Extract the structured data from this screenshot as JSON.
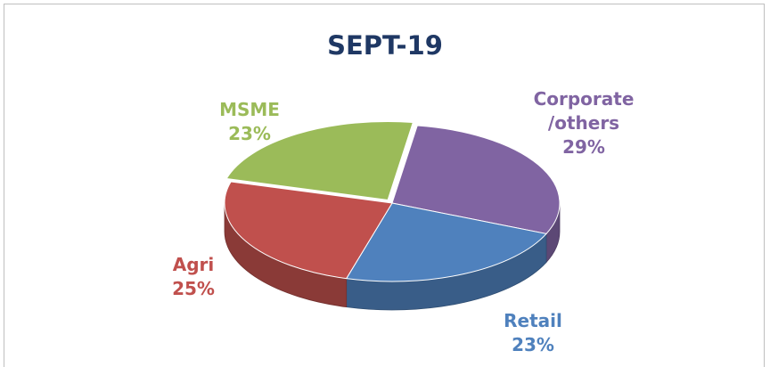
{
  "chart_data": {
    "type": "pie",
    "title": "SEPT-19",
    "categories": [
      "Corporate\n/others",
      "Retail",
      "Agri",
      "MSME"
    ],
    "values": [
      29,
      23,
      25,
      23
    ],
    "value_labels": [
      "29%",
      "23%",
      "25%",
      "23%"
    ],
    "colors": [
      "#8064a2",
      "#4f81bd",
      "#c0504d",
      "#9bbb59"
    ]
  }
}
